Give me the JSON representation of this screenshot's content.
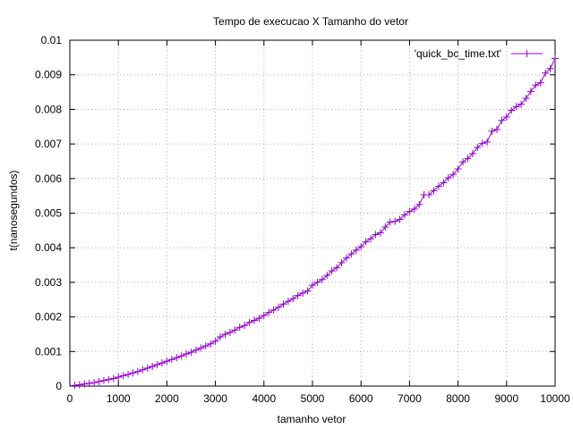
{
  "chart_data": {
    "type": "line",
    "title": "Tempo de execucao X Tamanho do vetor",
    "xlabel": "tamanho vetor",
    "ylabel": "t(nanosegundos)",
    "xlim": [
      0,
      10000
    ],
    "ylim": [
      0,
      0.01
    ],
    "xticks": [
      0,
      1000,
      2000,
      3000,
      4000,
      5000,
      6000,
      7000,
      8000,
      9000,
      10000
    ],
    "xtick_labels": [
      "0",
      "1000",
      "2000",
      "3000",
      "4000",
      "5000",
      "6000",
      "7000",
      "8000",
      "9000",
      "10000"
    ],
    "yticks": [
      0,
      0.001,
      0.002,
      0.003,
      0.004,
      0.005,
      0.006,
      0.007,
      0.008,
      0.009,
      0.01
    ],
    "ytick_labels": [
      "0",
      "0.001",
      "0.002",
      "0.003",
      "0.004",
      "0.005",
      "0.006",
      "0.007",
      "0.008",
      "0.009",
      "0.01"
    ],
    "grid": true,
    "legend_position": "top-right",
    "color": "#9400d3",
    "series": [
      {
        "name": "'quick_bc_time.txt'",
        "marker": "plus",
        "x": [
          100,
          200,
          300,
          400,
          500,
          600,
          700,
          800,
          900,
          1000,
          1100,
          1200,
          1300,
          1400,
          1500,
          1600,
          1700,
          1800,
          1900,
          2000,
          2100,
          2200,
          2300,
          2400,
          2500,
          2600,
          2700,
          2800,
          2900,
          3000,
          3100,
          3200,
          3300,
          3400,
          3500,
          3600,
          3700,
          3800,
          3900,
          4000,
          4100,
          4200,
          4300,
          4400,
          4500,
          4600,
          4700,
          4800,
          4900,
          5000,
          5100,
          5200,
          5300,
          5400,
          5500,
          5600,
          5700,
          5800,
          5900,
          6000,
          6100,
          6200,
          6300,
          6400,
          6500,
          6600,
          6700,
          6800,
          6900,
          7000,
          7100,
          7200,
          7300,
          7400,
          7500,
          7600,
          7700,
          7800,
          7900,
          8000,
          8100,
          8200,
          8300,
          8400,
          8500,
          8600,
          8700,
          8800,
          8900,
          9000,
          9100,
          9200,
          9300,
          9400,
          9500,
          9600,
          9700,
          9800,
          9900,
          10000
        ],
        "y": [
          2e-05,
          4e-05,
          6e-05,
          8e-05,
          0.0001,
          0.00013,
          0.00016,
          0.00019,
          0.00022,
          0.00026,
          0.0003,
          0.00034,
          0.00038,
          0.00042,
          0.00047,
          0.00052,
          0.00057,
          0.00062,
          0.00067,
          0.00072,
          0.00077,
          0.00082,
          0.00087,
          0.00093,
          0.00098,
          0.00104,
          0.0011,
          0.00116,
          0.00122,
          0.0013,
          0.00142,
          0.0015,
          0.00155,
          0.00162,
          0.0017,
          0.00175,
          0.00184,
          0.0019,
          0.00196,
          0.00204,
          0.00213,
          0.0022,
          0.00228,
          0.00237,
          0.00245,
          0.00253,
          0.00262,
          0.00269,
          0.00275,
          0.00292,
          0.003,
          0.00308,
          0.0032,
          0.00333,
          0.00342,
          0.00357,
          0.0037,
          0.00382,
          0.00393,
          0.00403,
          0.00417,
          0.00426,
          0.00438,
          0.00443,
          0.0046,
          0.00474,
          0.00476,
          0.00482,
          0.00495,
          0.00505,
          0.00512,
          0.00525,
          0.00553,
          0.00553,
          0.00565,
          0.00578,
          0.00588,
          0.00602,
          0.00612,
          0.00628,
          0.00648,
          0.00658,
          0.00672,
          0.0069,
          0.00702,
          0.00706,
          0.00737,
          0.00742,
          0.00768,
          0.00778,
          0.00797,
          0.00808,
          0.00815,
          0.00832,
          0.00852,
          0.0087,
          0.00877,
          0.00905,
          0.00918,
          0.00947
        ]
      }
    ]
  }
}
